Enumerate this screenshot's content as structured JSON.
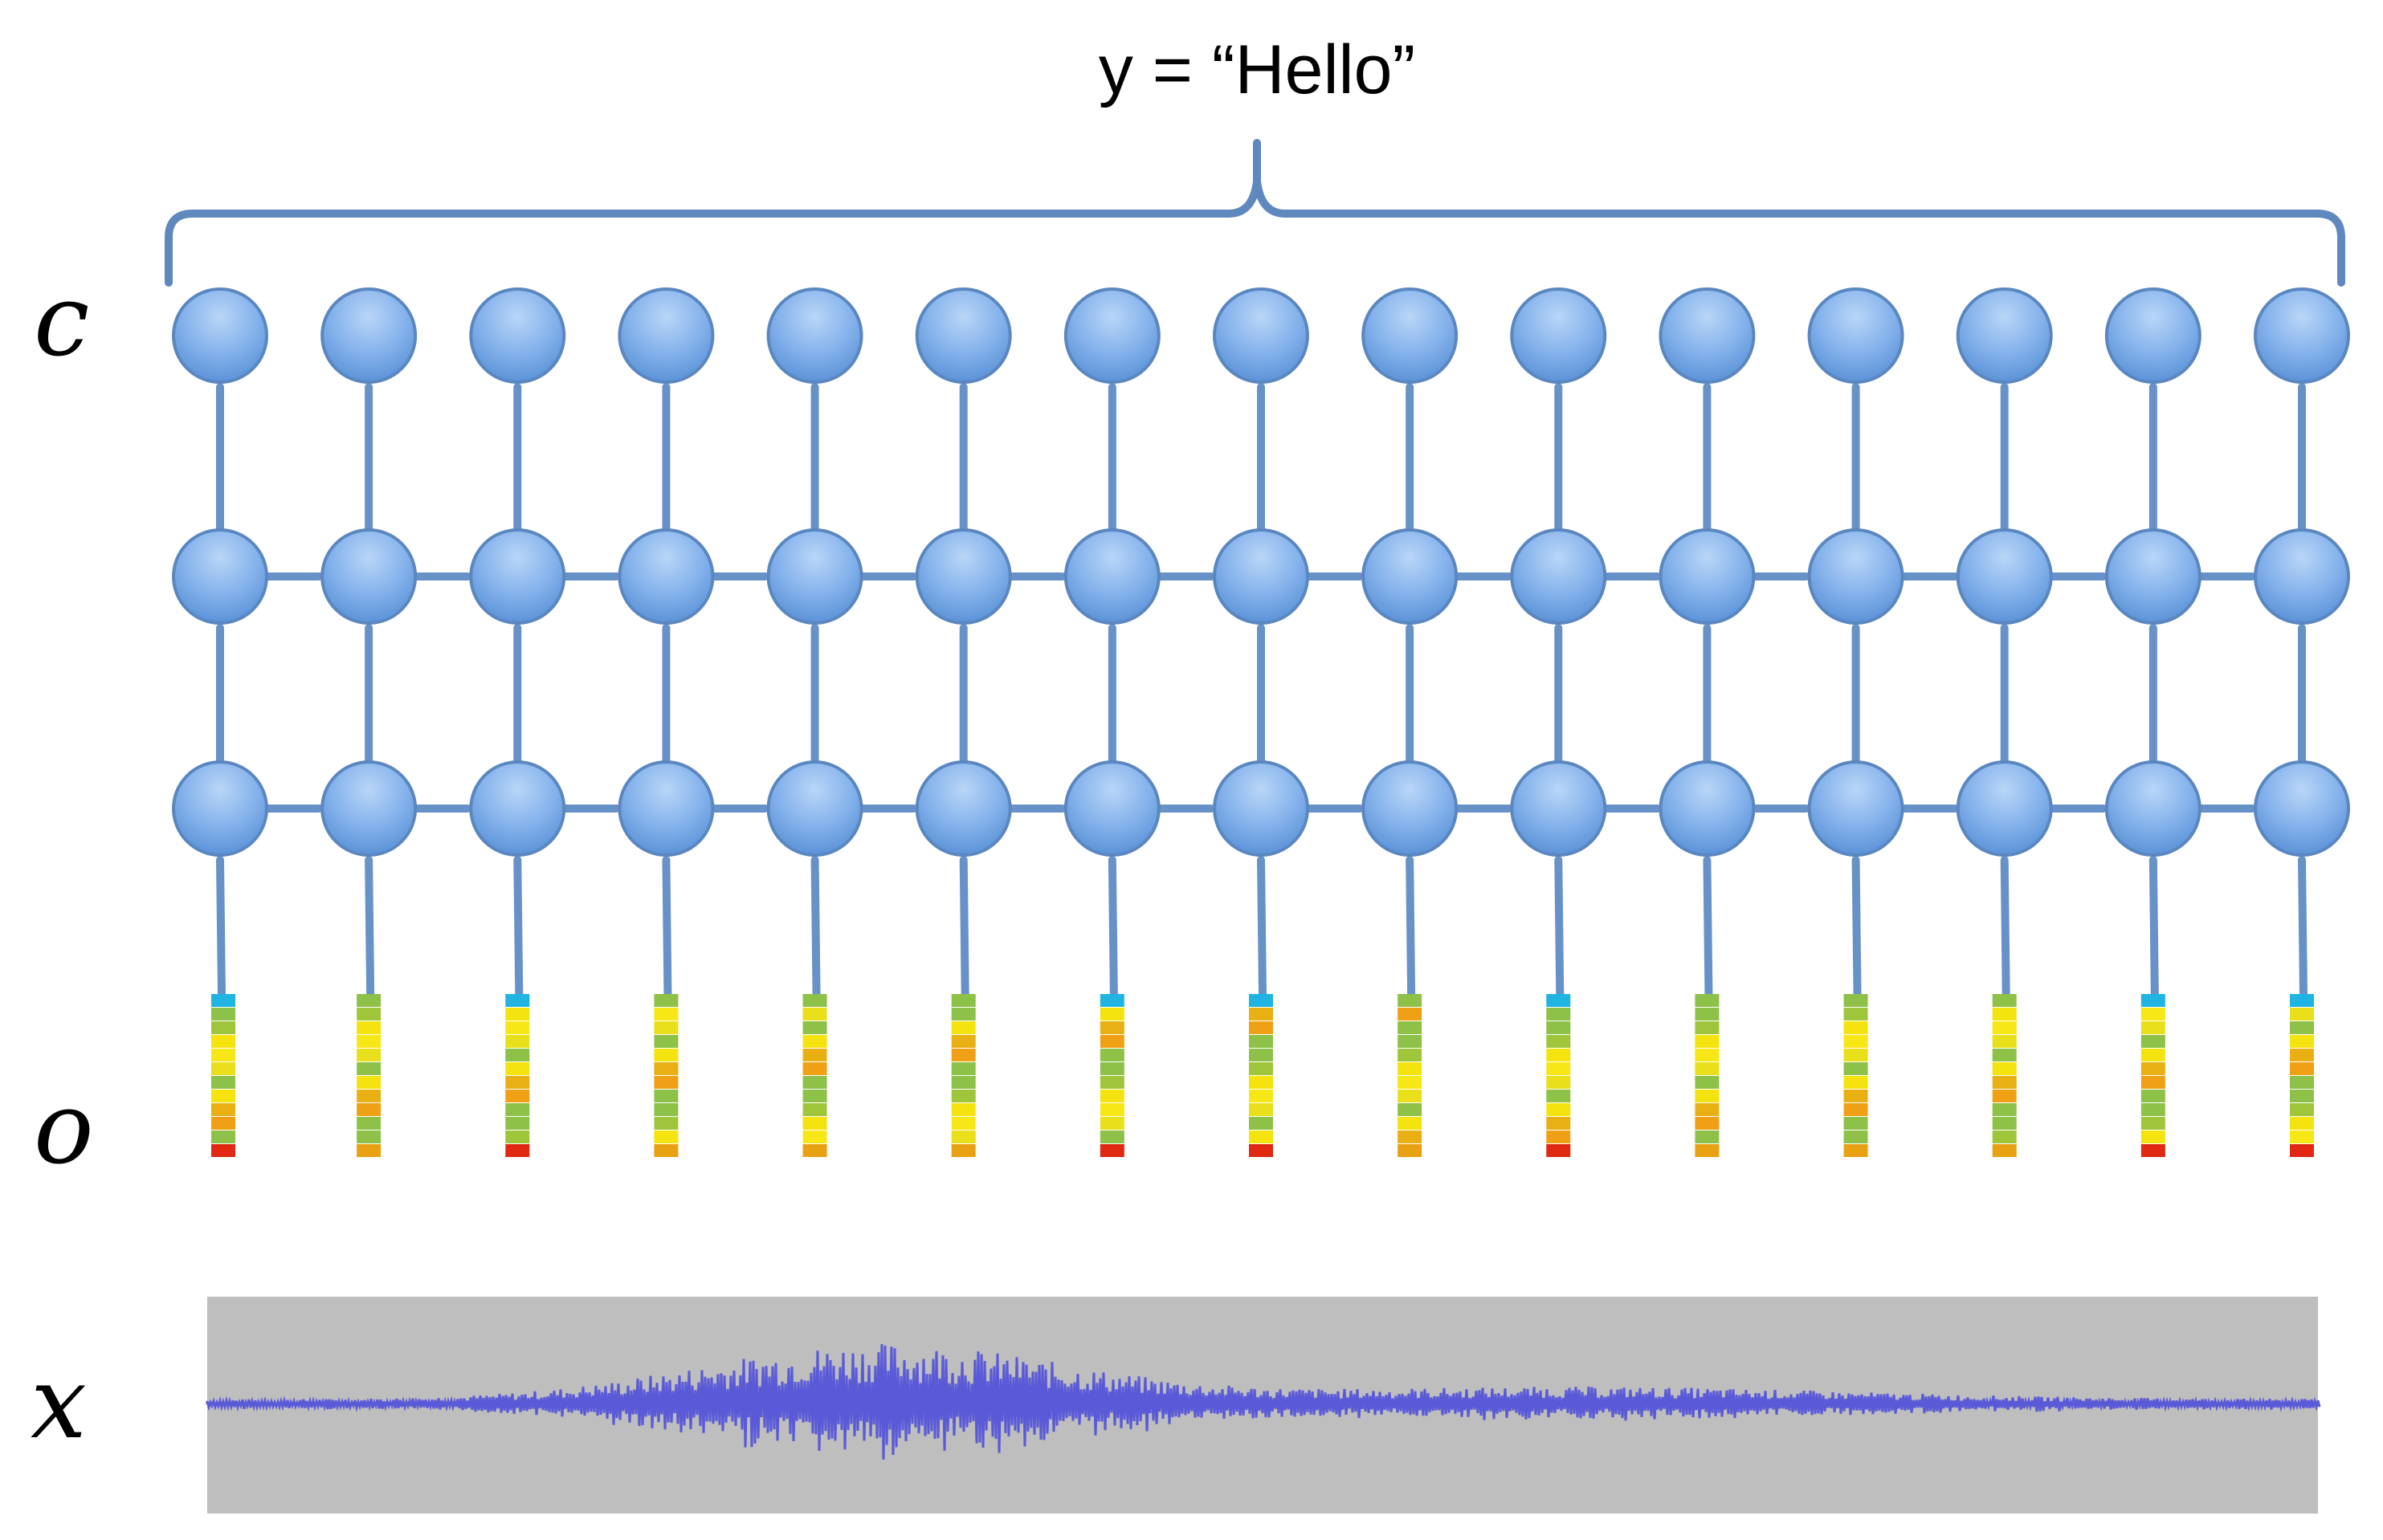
{
  "title": "y = “Hello”",
  "labels": {
    "output": "c",
    "probabilities": "o",
    "input": "x"
  },
  "network": {
    "timesteps": 15,
    "hidden_layers": 2,
    "output_layer": 1
  },
  "colors": {
    "node_fill_top": "#a8cbf2",
    "node_fill_bottom": "#5f95da",
    "node_stroke": "#5b87c0",
    "arrow": "#6792c8",
    "brace": "#5f88bf",
    "waveform_bg": "#bebebe",
    "waveform": "#5a5ad8"
  },
  "probability_columns": [
    {
      "top": "#20b4e3",
      "bottom": "#e02812"
    },
    {
      "top": "#8dc148",
      "bottom": "#e8a112"
    },
    {
      "top": "#20b4e3",
      "bottom": "#e02812"
    },
    {
      "top": "#8dc148",
      "bottom": "#e8a112"
    },
    {
      "top": "#8dc148",
      "bottom": "#e8a112"
    },
    {
      "top": "#8dc148",
      "bottom": "#e8a112"
    },
    {
      "top": "#20b4e3",
      "bottom": "#e02812"
    },
    {
      "top": "#20b4e3",
      "bottom": "#e02812"
    },
    {
      "top": "#8dc148",
      "bottom": "#e8a112"
    },
    {
      "top": "#20b4e3",
      "bottom": "#e02812"
    },
    {
      "top": "#8dc148",
      "bottom": "#e8a112"
    },
    {
      "top": "#8dc148",
      "bottom": "#e8a112"
    },
    {
      "top": "#8dc148",
      "bottom": "#e8a112"
    },
    {
      "top": "#20b4e3",
      "bottom": "#e02812"
    },
    {
      "top": "#20b4e3",
      "bottom": "#e02812"
    }
  ]
}
